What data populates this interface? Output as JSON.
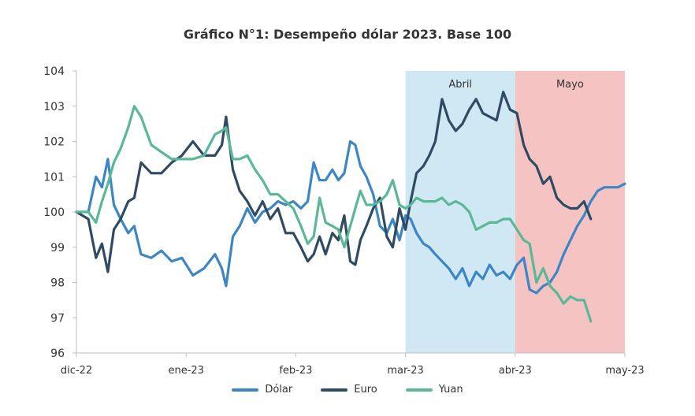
{
  "chart_data": {
    "type": "line",
    "title": "Gráfico N°1: Desempeño dólar 2023. Base 100",
    "xlabel": "",
    "ylabel": "",
    "ylim": [
      96,
      104
    ],
    "y_ticks": [
      96,
      97,
      98,
      99,
      100,
      101,
      102,
      103,
      104
    ],
    "x_ticks": [
      "dic-22",
      "ene-23",
      "feb-23",
      "mar-23",
      "abr-23",
      "may-23"
    ],
    "grid": false,
    "legend_position": "bottom",
    "shaded_regions": [
      {
        "label": "Abril",
        "start_day": 30,
        "end_day": 31,
        "color": "#cfe8f4"
      },
      {
        "label": "Mayo",
        "start_day": 31,
        "end_day": 32,
        "color": "#f6c3c3"
      }
    ],
    "series": [
      {
        "name": "Dólar",
        "color": "#3d86c6",
        "values": [
          [
            0,
            100
          ],
          [
            1.4,
            100
          ],
          [
            2.3,
            101
          ],
          [
            3.0,
            100.7
          ],
          [
            3.7,
            101.5
          ],
          [
            4.4,
            100.2
          ],
          [
            5.2,
            99.8
          ],
          [
            6.1,
            99.4
          ],
          [
            6.8,
            99.6
          ],
          [
            7.6,
            98.8
          ],
          [
            8.8,
            98.7
          ],
          [
            10.0,
            98.9
          ],
          [
            11.2,
            98.6
          ],
          [
            12.4,
            98.7
          ],
          [
            13.7,
            98.2
          ],
          [
            15.0,
            98.4
          ],
          [
            16.3,
            98.8
          ],
          [
            17.1,
            98.4
          ],
          [
            17.6,
            97.9
          ],
          [
            18.4,
            99.3
          ],
          [
            19.2,
            99.6
          ],
          [
            20.1,
            100.1
          ],
          [
            21.0,
            99.7
          ],
          [
            21.9,
            100
          ],
          [
            22.8,
            100.1
          ],
          [
            23.7,
            100.3
          ],
          [
            24.6,
            100.2
          ],
          [
            25.5,
            100.3
          ],
          [
            26.4,
            100.1
          ],
          [
            27.2,
            100.3
          ],
          [
            27.9,
            101.4
          ],
          [
            28.6,
            100.9
          ],
          [
            29.3,
            100.9
          ],
          [
            30.1,
            101.2
          ],
          [
            30.8,
            100.9
          ],
          [
            31.5,
            101.1
          ],
          [
            32.2,
            102
          ],
          [
            32.8,
            101.9
          ],
          [
            33.4,
            101.3
          ],
          [
            34.1,
            101
          ],
          [
            34.9,
            100.5
          ],
          [
            35.7,
            99.6
          ],
          [
            36.5,
            99.4
          ],
          [
            37.2,
            99.8
          ],
          [
            38.0,
            99.2
          ],
          [
            38.7,
            99.9
          ],
          [
            39.3,
            99.8
          ],
          [
            40.0,
            99.4
          ],
          [
            40.8,
            99.1
          ],
          [
            41.5,
            99
          ],
          [
            42.2,
            98.8
          ],
          [
            43.0,
            98.6
          ],
          [
            43.8,
            98.4
          ],
          [
            44.6,
            98.1
          ],
          [
            45.4,
            98.4
          ],
          [
            46.2,
            97.9
          ],
          [
            47.0,
            98.3
          ],
          [
            47.8,
            98.1
          ],
          [
            48.6,
            98.5
          ],
          [
            49.4,
            98.2
          ],
          [
            50.2,
            98.3
          ],
          [
            51.0,
            98.1
          ],
          [
            51.8,
            98.5
          ],
          [
            52.6,
            98.7
          ],
          [
            53.3,
            97.8
          ],
          [
            54.1,
            97.7
          ],
          [
            54.9,
            97.9
          ],
          [
            55.7,
            98
          ],
          [
            56.5,
            98.3
          ],
          [
            57.3,
            98.8
          ],
          [
            58.1,
            99.2
          ],
          [
            58.9,
            99.6
          ],
          [
            59.7,
            99.9
          ],
          [
            60.5,
            100.3
          ],
          [
            61.3,
            100.6
          ],
          [
            62.1,
            100.7
          ],
          [
            62.9,
            100.7
          ],
          [
            63.7,
            100.7
          ],
          [
            64.5,
            100.8
          ]
        ]
      },
      {
        "name": "Euro",
        "color": "#2f4b63",
        "values": [
          [
            0,
            100
          ],
          [
            1.4,
            99.8
          ],
          [
            2.3,
            98.7
          ],
          [
            3.0,
            99.1
          ],
          [
            3.7,
            98.3
          ],
          [
            4.4,
            99.5
          ],
          [
            5.2,
            99.8
          ],
          [
            6.1,
            100.3
          ],
          [
            6.8,
            100.4
          ],
          [
            7.6,
            101.4
          ],
          [
            8.8,
            101.1
          ],
          [
            10.0,
            101.1
          ],
          [
            11.2,
            101.4
          ],
          [
            12.4,
            101.6
          ],
          [
            13.7,
            102
          ],
          [
            15.0,
            101.6
          ],
          [
            16.3,
            101.6
          ],
          [
            17.1,
            101.9
          ],
          [
            17.6,
            102.7
          ],
          [
            18.4,
            101.2
          ],
          [
            19.2,
            100.6
          ],
          [
            20.1,
            100.3
          ],
          [
            21.0,
            99.9
          ],
          [
            21.9,
            100.3
          ],
          [
            22.8,
            99.8
          ],
          [
            23.7,
            100.1
          ],
          [
            24.6,
            99.4
          ],
          [
            25.5,
            99.4
          ],
          [
            26.4,
            99
          ],
          [
            27.2,
            98.6
          ],
          [
            27.9,
            98.8
          ],
          [
            28.6,
            99.3
          ],
          [
            29.3,
            98.8
          ],
          [
            30.1,
            99.4
          ],
          [
            30.8,
            99.2
          ],
          [
            31.5,
            99.9
          ],
          [
            32.2,
            98.6
          ],
          [
            32.8,
            98.5
          ],
          [
            33.4,
            99.2
          ],
          [
            34.1,
            99.6
          ],
          [
            34.9,
            100.1
          ],
          [
            35.7,
            100.4
          ],
          [
            36.5,
            99.3
          ],
          [
            37.2,
            99
          ],
          [
            38.0,
            100.1
          ],
          [
            38.7,
            99.5
          ],
          [
            39.3,
            100.3
          ],
          [
            40.0,
            101.1
          ],
          [
            40.8,
            101.3
          ],
          [
            41.5,
            101.6
          ],
          [
            42.2,
            102
          ],
          [
            43.0,
            103.2
          ],
          [
            43.8,
            102.6
          ],
          [
            44.6,
            102.3
          ],
          [
            45.4,
            102.5
          ],
          [
            46.2,
            102.9
          ],
          [
            47.0,
            103.2
          ],
          [
            47.8,
            102.8
          ],
          [
            48.6,
            102.7
          ],
          [
            49.4,
            102.6
          ],
          [
            50.2,
            103.4
          ],
          [
            51.0,
            102.9
          ],
          [
            51.8,
            102.8
          ],
          [
            52.6,
            101.9
          ],
          [
            53.3,
            101.5
          ],
          [
            54.1,
            101.3
          ],
          [
            54.9,
            100.8
          ],
          [
            55.7,
            101
          ],
          [
            56.5,
            100.4
          ],
          [
            57.3,
            100.2
          ],
          [
            58.1,
            100.1
          ],
          [
            58.9,
            100.1
          ],
          [
            59.7,
            100.3
          ],
          [
            60.5,
            99.8
          ]
        ]
      },
      {
        "name": "Yuan",
        "color": "#5bb896",
        "values": [
          [
            0,
            100
          ],
          [
            1.4,
            100
          ],
          [
            2.3,
            99.7
          ],
          [
            3.0,
            100.3
          ],
          [
            3.7,
            100.8
          ],
          [
            4.4,
            101.4
          ],
          [
            5.2,
            101.8
          ],
          [
            6.1,
            102.4
          ],
          [
            6.8,
            103
          ],
          [
            7.6,
            102.7
          ],
          [
            8.8,
            101.9
          ],
          [
            10.0,
            101.7
          ],
          [
            11.2,
            101.5
          ],
          [
            12.4,
            101.5
          ],
          [
            13.7,
            101.5
          ],
          [
            15.0,
            101.6
          ],
          [
            16.3,
            102.2
          ],
          [
            17.1,
            102.3
          ],
          [
            17.6,
            102.4
          ],
          [
            18.4,
            101.5
          ],
          [
            19.2,
            101.5
          ],
          [
            20.1,
            101.6
          ],
          [
            21.0,
            101.2
          ],
          [
            21.9,
            100.9
          ],
          [
            22.8,
            100.5
          ],
          [
            23.7,
            100.5
          ],
          [
            24.6,
            100.3
          ],
          [
            25.5,
            100.1
          ],
          [
            26.4,
            99.6
          ],
          [
            27.2,
            99.1
          ],
          [
            27.9,
            99.3
          ],
          [
            28.6,
            100.4
          ],
          [
            29.3,
            99.7
          ],
          [
            30.1,
            99.6
          ],
          [
            30.8,
            99.5
          ],
          [
            31.5,
            99
          ],
          [
            32.2,
            99.6
          ],
          [
            32.8,
            100.1
          ],
          [
            33.4,
            100.6
          ],
          [
            34.1,
            100.2
          ],
          [
            34.9,
            100.2
          ],
          [
            35.7,
            100.3
          ],
          [
            36.5,
            100.5
          ],
          [
            37.2,
            100.9
          ],
          [
            38.0,
            100.2
          ],
          [
            38.7,
            100.1
          ],
          [
            39.3,
            100.2
          ],
          [
            40.0,
            100.4
          ],
          [
            40.8,
            100.3
          ],
          [
            41.5,
            100.3
          ],
          [
            42.2,
            100.3
          ],
          [
            43.0,
            100.4
          ],
          [
            43.8,
            100.2
          ],
          [
            44.6,
            100.3
          ],
          [
            45.4,
            100.2
          ],
          [
            46.2,
            100
          ],
          [
            47.0,
            99.5
          ],
          [
            47.8,
            99.6
          ],
          [
            48.6,
            99.7
          ],
          [
            49.4,
            99.7
          ],
          [
            50.2,
            99.8
          ],
          [
            51.0,
            99.8
          ],
          [
            51.8,
            99.5
          ],
          [
            52.6,
            99.2
          ],
          [
            53.3,
            99.1
          ],
          [
            54.1,
            98
          ],
          [
            54.9,
            98.4
          ],
          [
            55.7,
            97.9
          ],
          [
            56.5,
            97.7
          ],
          [
            57.3,
            97.4
          ],
          [
            58.1,
            97.6
          ],
          [
            58.9,
            97.5
          ],
          [
            59.7,
            97.5
          ],
          [
            60.5,
            96.9
          ]
        ]
      }
    ]
  },
  "legend": {
    "items": [
      {
        "label": "Dólar",
        "color": "#3d86c6"
      },
      {
        "label": "Euro",
        "color": "#2f4b63"
      },
      {
        "label": "Yuan",
        "color": "#5bb896"
      }
    ]
  }
}
